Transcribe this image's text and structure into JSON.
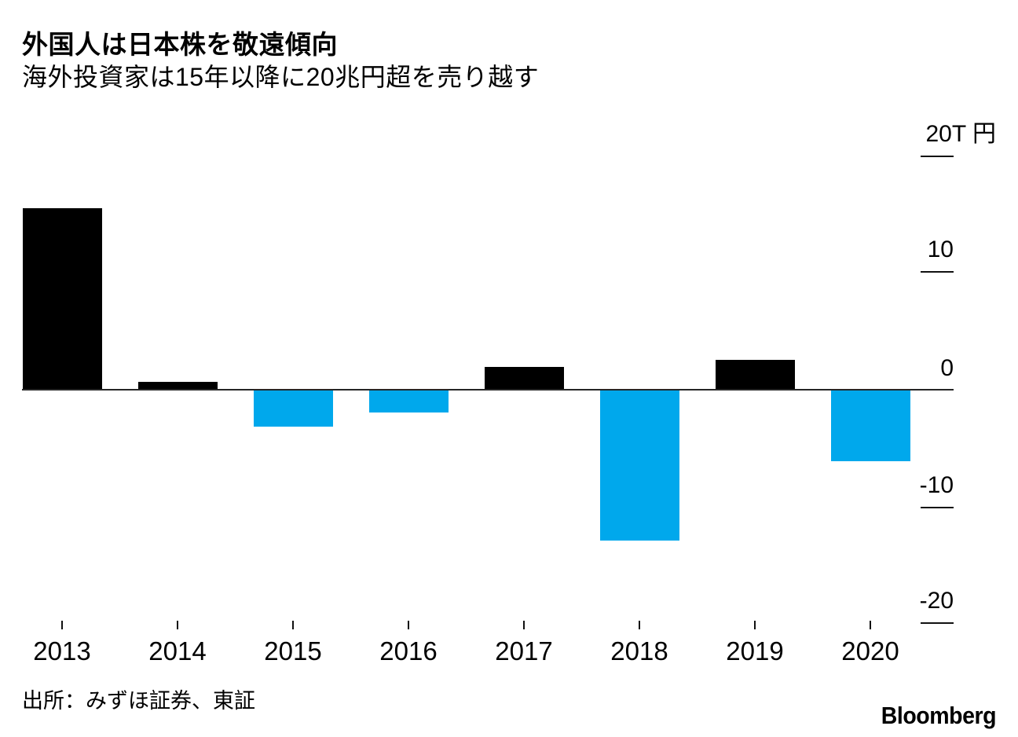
{
  "header": {
    "title": "外国人は日本株を敬遠傾向",
    "subtitle": "海外投資家は15年以降に20兆円超を売り越す"
  },
  "chart_data": {
    "type": "bar",
    "title": "外国人は日本株を敬遠傾向",
    "subtitle": "海外投資家は15年以降に20兆円超を売り越す",
    "categories": [
      "2013",
      "2014",
      "2015",
      "2016",
      "2017",
      "2018",
      "2019",
      "2020"
    ],
    "values": [
      15.7,
      0.65,
      -3.1,
      -1.9,
      2.0,
      -13.0,
      2.6,
      -6.1
    ],
    "unit": "兆円 (trillion yen)",
    "ylim": [
      -22,
      21
    ],
    "yticks": [
      {
        "label": "20T 円",
        "value": 20,
        "tick": true
      },
      {
        "label": "10",
        "value": 10,
        "tick": true
      },
      {
        "label": "0",
        "value": 0,
        "tick": false
      },
      {
        "label": "-10",
        "value": -10,
        "tick": true
      },
      {
        "label": "-20",
        "value": -20,
        "tick": true
      }
    ],
    "grid": false,
    "legend_position": "none",
    "positive_color": "#000000",
    "negative_color": "#00A8EC",
    "axis_color": "#262626"
  },
  "footer": {
    "source": "出所：みずほ証券、東証",
    "brand": "Bloomberg"
  }
}
